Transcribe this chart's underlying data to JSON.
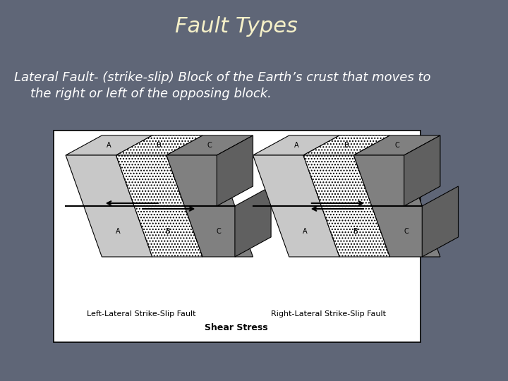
{
  "background_color": "#5f6677",
  "title": "Fault Types",
  "title_color": "#f5f0c8",
  "title_fontsize": 22,
  "title_font": "Georgia",
  "body_text_line1": "Lateral Fault- (strike-slip) Block of the Earth’s crust that moves to",
  "body_text_line2": "    the right or left of the opposing block.",
  "body_color": "#ffffff",
  "body_fontsize": 13,
  "body_font": "Georgia",
  "diagram_bg": "#ffffff",
  "diagram_border": "#000000",
  "left_label": "Left-Lateral Strike-Slip Fault",
  "right_label": "Right-Lateral Strike-Slip Fault",
  "bottom_label": "Shear Stress",
  "label_fontsize": 8,
  "col_A": "#c8c8c8",
  "col_B_hatch": ".....",
  "col_C": "#808080",
  "col_side": "#a0a0a0",
  "col_dark_side": "#606060"
}
